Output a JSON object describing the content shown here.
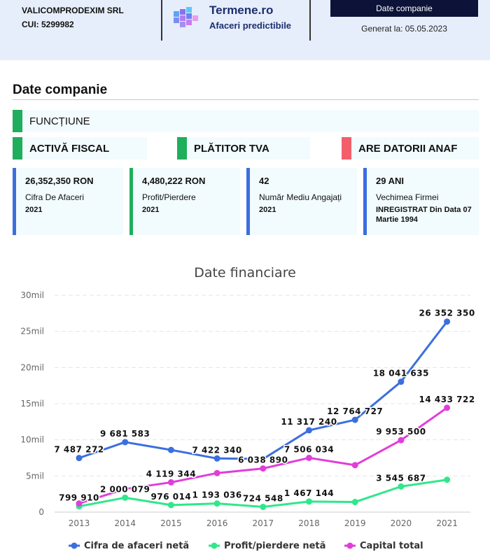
{
  "header": {
    "company_name": "VALICOMPRODEXIM SRL",
    "cui": "CUI: 5299982",
    "brand_name": "Termene.ro",
    "brand_tagline": "Afaceri predictibile",
    "document_label": "Date companie",
    "generated": "Generat la: 05.05.2023"
  },
  "section_title": "Date companie",
  "statuses": [
    {
      "label": "FUNCȚIUNE",
      "color": "#1fae5b"
    },
    {
      "label": "ACTIVĂ FISCAL",
      "color": "#1fae5b"
    },
    {
      "label": "PLĂTITOR TVA",
      "color": "#1fae5b"
    },
    {
      "label": "ARE DATORII ANAF",
      "color": "#f25f6b"
    }
  ],
  "stats": [
    {
      "value": "26,352,350 RON",
      "label": "Cifra De Afaceri",
      "sub": "2021",
      "color": "#3b6fe0"
    },
    {
      "value": "4,480,222 RON",
      "label": "Profit/Pierdere",
      "sub": "2021",
      "color": "#1fae5b"
    },
    {
      "value": "42",
      "label": "Număr Mediu Angajați",
      "sub": "2021",
      "color": "#3b6fe0"
    },
    {
      "value": "29 ANI",
      "label": "Vechimea Firmei",
      "sub": "INREGISTRAT Din Data 07 Martie 1994",
      "color": "#3b6fe0"
    }
  ],
  "chart_data": {
    "type": "line",
    "title": "Date financiare",
    "x": [
      "2013",
      "2014",
      "2015",
      "2016",
      "2017",
      "2018",
      "2019",
      "2020",
      "2021"
    ],
    "ylim": [
      0,
      30000000
    ],
    "y_ticks": [
      "0",
      "5mil",
      "10mil",
      "15mil",
      "20mil",
      "25mil",
      "30mil"
    ],
    "grid": true,
    "legend_position": "bottom",
    "series": [
      {
        "name": "Cifra de afaceri netă",
        "color": "#3b6fe0",
        "values": [
          7487272,
          9681583,
          8600000,
          7422340,
          7350000,
          11317240,
          12764727,
          18041635,
          26352350
        ],
        "labels": [
          "7 487 272",
          "9 681 583",
          "",
          "7 422 340",
          "",
          "11 317 240",
          "12 764 727",
          "18 041 635",
          "26 352 350"
        ]
      },
      {
        "name": "Profit/pierdere netă",
        "color": "#2ee88a",
        "values": [
          799910,
          2000079,
          976014,
          1193036,
          724548,
          1467144,
          1400000,
          3545687,
          4480222
        ],
        "labels": [
          "799 910",
          "2 000 079",
          "976 014",
          "1 193 036",
          "724 548",
          "1 467 144",
          "",
          "3 545 687",
          ""
        ]
      },
      {
        "name": "Capital total",
        "color": "#e03ed9",
        "values": [
          1200000,
          3200000,
          4119344,
          5400000,
          6038890,
          7506034,
          6500000,
          9953500,
          14433722
        ],
        "labels": [
          "",
          "",
          "4 119 344",
          "",
          "6 038 890",
          "7 506 034",
          "",
          "9 953 500",
          "14 433 722"
        ]
      }
    ]
  }
}
